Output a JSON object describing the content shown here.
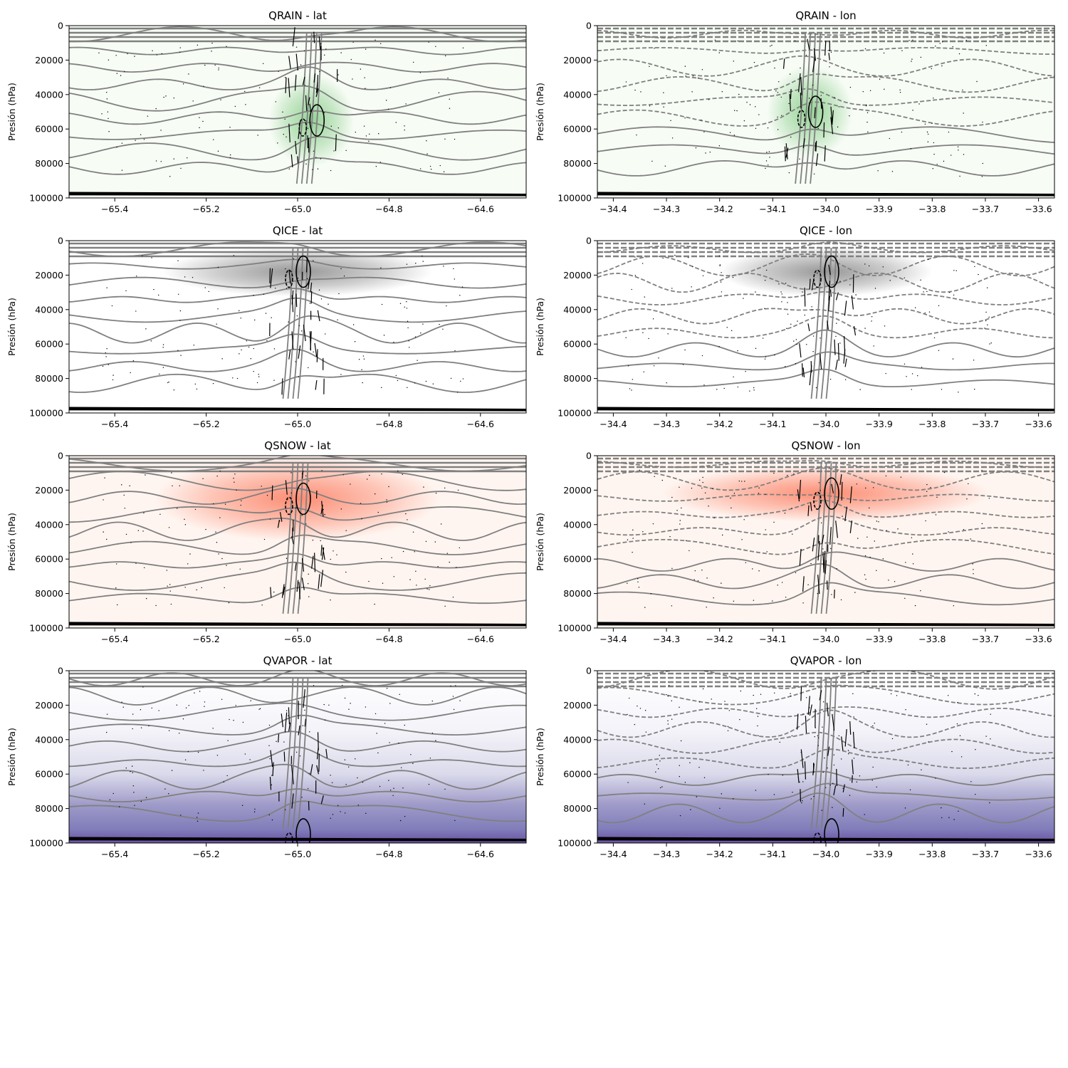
{
  "chart_data": [
    {
      "type": "heatmap",
      "title": "QRAIN - lat",
      "xlabel": "",
      "ylabel": "Presión (hPa)",
      "xlim": [
        -65.5,
        -64.5
      ],
      "ylim": [
        100000,
        0
      ],
      "xticks": [
        -65.4,
        -65.2,
        -65.0,
        -64.8,
        -64.6
      ],
      "xtick_labels": [
        "−65.4",
        "−65.2",
        "−65.0",
        "−64.8",
        "−64.6"
      ],
      "yticks": [
        0,
        20000,
        40000,
        60000,
        80000,
        100000
      ],
      "ytick_labels": [
        "0",
        "20000",
        "40000",
        "60000",
        "80000",
        "100000"
      ],
      "field_color": "#74c476",
      "field_max_x": -64.97,
      "field_max_y": 55000,
      "grid": false,
      "overlays": [
        "gray contour lines",
        "black contour lines",
        "wind vectors"
      ]
    },
    {
      "type": "heatmap",
      "title": "QRAIN - lon",
      "xlabel": "",
      "ylabel": "Presión (hPa)",
      "xlim": [
        -34.43,
        -33.57
      ],
      "ylim": [
        100000,
        0
      ],
      "xticks": [
        -34.4,
        -34.3,
        -34.2,
        -34.1,
        -34.0,
        -33.9,
        -33.8,
        -33.7,
        -33.6
      ],
      "xtick_labels": [
        "−34.4",
        "−34.3",
        "−34.2",
        "−34.1",
        "−34.0",
        "−33.9",
        "−33.8",
        "−33.7",
        "−33.6"
      ],
      "yticks": [
        0,
        20000,
        40000,
        60000,
        80000,
        100000
      ],
      "ytick_labels": [
        "0",
        "20000",
        "40000",
        "60000",
        "80000",
        "100000"
      ],
      "field_color": "#74c476",
      "field_max_x": -34.03,
      "field_max_y": 50000,
      "grid": false,
      "overlays": [
        "gray dashed contour lines",
        "black contour lines",
        "wind vectors"
      ]
    },
    {
      "type": "heatmap",
      "title": "QICE - lat",
      "xlabel": "",
      "ylabel": "Presión (hPa)",
      "xlim": [
        -65.5,
        -64.5
      ],
      "ylim": [
        100000,
        0
      ],
      "xticks": [
        -65.4,
        -65.2,
        -65.0,
        -64.8,
        -64.6
      ],
      "xtick_labels": [
        "−65.4",
        "−65.2",
        "−65.0",
        "−64.8",
        "−64.6"
      ],
      "yticks": [
        0,
        20000,
        40000,
        60000,
        80000,
        100000
      ],
      "ytick_labels": [
        "0",
        "20000",
        "40000",
        "60000",
        "80000",
        "100000"
      ],
      "field_color": "#737373",
      "field_max_x": -65.0,
      "field_max_y": 18000,
      "grid": false,
      "overlays": [
        "gray contour lines",
        "black contour lines",
        "wind vectors"
      ]
    },
    {
      "type": "heatmap",
      "title": "QICE - lon",
      "xlabel": "",
      "ylabel": "Presión (hPa)",
      "xlim": [
        -34.43,
        -33.57
      ],
      "ylim": [
        100000,
        0
      ],
      "xticks": [
        -34.4,
        -34.3,
        -34.2,
        -34.1,
        -34.0,
        -33.9,
        -33.8,
        -33.7,
        -33.6
      ],
      "xtick_labels": [
        "−34.4",
        "−34.3",
        "−34.2",
        "−34.1",
        "−34.0",
        "−33.9",
        "−33.8",
        "−33.7",
        "−33.6"
      ],
      "yticks": [
        0,
        20000,
        40000,
        60000,
        80000,
        100000
      ],
      "ytick_labels": [
        "0",
        "20000",
        "40000",
        "60000",
        "80000",
        "100000"
      ],
      "field_color": "#737373",
      "field_max_x": -34.0,
      "field_max_y": 18000,
      "grid": false,
      "overlays": [
        "gray dashed contour lines",
        "black contour lines",
        "wind vectors"
      ]
    },
    {
      "type": "heatmap",
      "title": "QSNOW - lat",
      "xlabel": "",
      "ylabel": "Presión (hPa)",
      "xlim": [
        -65.5,
        -64.5
      ],
      "ylim": [
        100000,
        0
      ],
      "xticks": [
        -65.4,
        -65.2,
        -65.0,
        -64.8,
        -64.6
      ],
      "xtick_labels": [
        "−65.4",
        "−65.2",
        "−65.0",
        "−64.8",
        "−64.6"
      ],
      "yticks": [
        0,
        20000,
        40000,
        60000,
        80000,
        100000
      ],
      "ytick_labels": [
        "0",
        "20000",
        "40000",
        "60000",
        "80000",
        "100000"
      ],
      "field_color": "#fb6a4a",
      "field_max_x": -65.0,
      "field_max_y": 25000,
      "grid": false,
      "overlays": [
        "gray contour lines",
        "black contour lines",
        "wind vectors"
      ]
    },
    {
      "type": "heatmap",
      "title": "QSNOW - lon",
      "xlabel": "",
      "ylabel": "Presión (hPa)",
      "xlim": [
        -34.43,
        -33.57
      ],
      "ylim": [
        100000,
        0
      ],
      "xticks": [
        -34.4,
        -34.3,
        -34.2,
        -34.1,
        -34.0,
        -33.9,
        -33.8,
        -33.7,
        -33.6
      ],
      "xtick_labels": [
        "−34.4",
        "−34.3",
        "−34.2",
        "−34.1",
        "−34.0",
        "−33.9",
        "−33.8",
        "−33.7",
        "−33.6"
      ],
      "yticks": [
        0,
        20000,
        40000,
        60000,
        80000,
        100000
      ],
      "ytick_labels": [
        "0",
        "20000",
        "40000",
        "60000",
        "80000",
        "100000"
      ],
      "field_color": "#fb6a4a",
      "field_max_x": -34.0,
      "field_max_y": 22000,
      "grid": false,
      "overlays": [
        "gray dashed contour lines",
        "black contour lines",
        "wind vectors"
      ]
    },
    {
      "type": "heatmap",
      "title": "QVAPOR - lat",
      "xlabel": "",
      "ylabel": "Presión (hPa)",
      "xlim": [
        -65.5,
        -64.5
      ],
      "ylim": [
        100000,
        0
      ],
      "xticks": [
        -65.4,
        -65.2,
        -65.0,
        -64.8,
        -64.6
      ],
      "xtick_labels": [
        "−65.4",
        "−65.2",
        "−65.0",
        "−64.8",
        "−64.6"
      ],
      "yticks": [
        0,
        20000,
        40000,
        60000,
        80000,
        100000
      ],
      "ytick_labels": [
        "0",
        "20000",
        "40000",
        "60000",
        "80000",
        "100000"
      ],
      "field_color": "#6a51a3",
      "field_max_x": -65.0,
      "field_max_y": 95000,
      "grid": false,
      "overlays": [
        "gray contour lines",
        "black contour lines",
        "wind vectors"
      ]
    },
    {
      "type": "heatmap",
      "title": "QVAPOR - lon",
      "xlabel": "",
      "ylabel": "Presión (hPa)",
      "xlim": [
        -34.43,
        -33.57
      ],
      "ylim": [
        100000,
        0
      ],
      "xticks": [
        -34.4,
        -34.3,
        -34.2,
        -34.1,
        -34.0,
        -33.9,
        -33.8,
        -33.7,
        -33.6
      ],
      "xtick_labels": [
        "−34.4",
        "−34.3",
        "−34.2",
        "−34.1",
        "−34.0",
        "−33.9",
        "−33.8",
        "−33.7",
        "−33.6"
      ],
      "yticks": [
        0,
        20000,
        40000,
        60000,
        80000,
        100000
      ],
      "ytick_labels": [
        "0",
        "20000",
        "40000",
        "60000",
        "80000",
        "100000"
      ],
      "field_color": "#6a51a3",
      "field_max_x": -34.0,
      "field_max_y": 95000,
      "grid": false,
      "overlays": [
        "gray dashed contour lines",
        "black contour lines",
        "wind vectors"
      ]
    }
  ]
}
